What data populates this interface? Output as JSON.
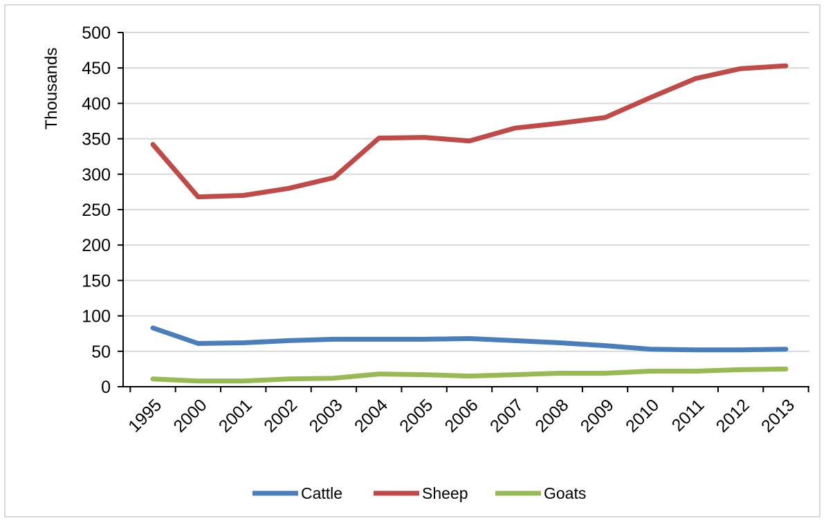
{
  "chart_data": {
    "type": "line",
    "ylabel": "Thousands",
    "xlabel": "",
    "ylim": [
      0,
      500
    ],
    "yticks": [
      "0",
      "50",
      "100",
      "150",
      "200",
      "250",
      "300",
      "350",
      "400",
      "450",
      "500"
    ],
    "categories": [
      "1995",
      "2000",
      "2001",
      "2002",
      "2003",
      "2004",
      "2005",
      "2006",
      "2007",
      "2008",
      "2009",
      "2010",
      "2011",
      "2012",
      "2013"
    ],
    "grid": true,
    "legend_position": "bottom",
    "series": [
      {
        "name": "Cattle",
        "color": "#4a7ebb",
        "values": [
          83,
          61,
          62,
          65,
          67,
          67,
          67,
          68,
          65,
          62,
          58,
          53,
          52,
          52,
          53
        ]
      },
      {
        "name": "Sheep",
        "color": "#be4b48",
        "values": [
          342,
          268,
          270,
          280,
          295,
          351,
          352,
          347,
          365,
          372,
          380,
          408,
          435,
          449,
          453
        ]
      },
      {
        "name": "Goats",
        "color": "#98b954",
        "values": [
          11,
          8,
          8,
          11,
          12,
          18,
          17,
          15,
          17,
          19,
          19,
          22,
          22,
          24,
          25
        ]
      }
    ]
  }
}
